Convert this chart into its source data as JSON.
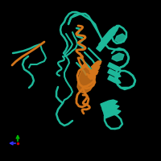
{
  "background_color": "#000000",
  "teal_color": "#1db89a",
  "orange_color": "#d4751a",
  "fig_width": 2.0,
  "fig_height": 2.0,
  "dpi": 100,
  "axis_x_color": "#3333ff",
  "axis_y_color": "#00bb00",
  "axis_origin_color": "#cc0000"
}
